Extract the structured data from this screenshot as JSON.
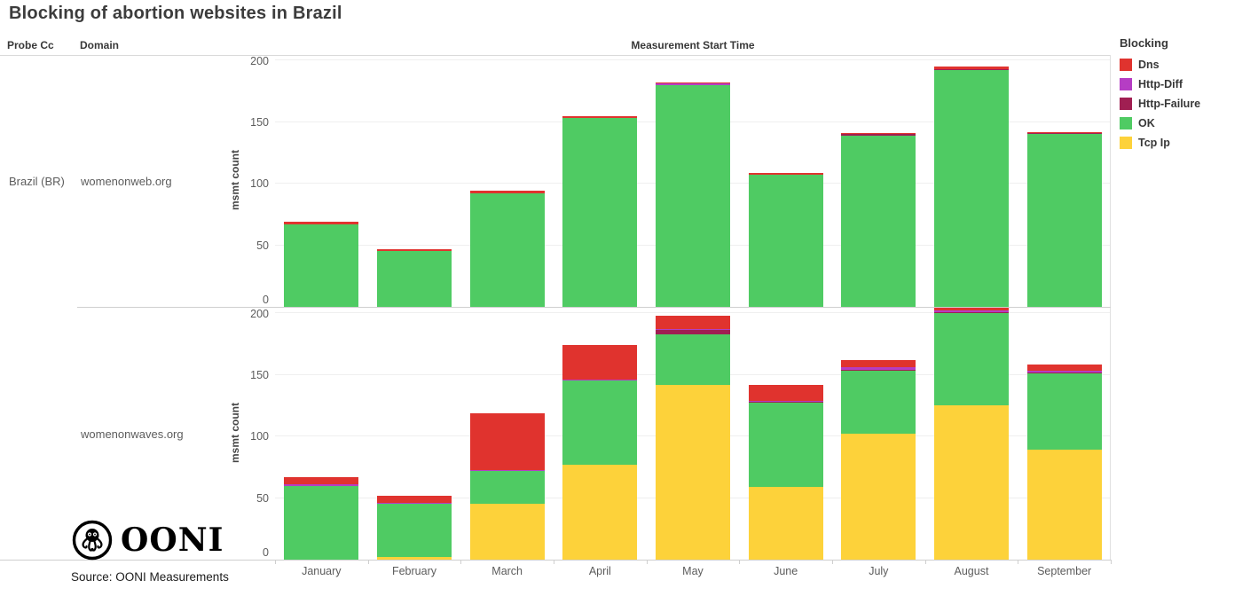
{
  "title": "Blocking of abortion websites in Brazil",
  "headers": {
    "probe_cc": "Probe Cc",
    "domain": "Domain",
    "x_axis_title": "Measurement Start Time"
  },
  "probe_label": "Brazil (BR)",
  "y_axis_title": "msmt count",
  "y_ticks": [
    0,
    50,
    100,
    150,
    200
  ],
  "legend": {
    "title": "Blocking",
    "items": [
      {
        "label": "Dns",
        "color": "#e0332e"
      },
      {
        "label": "Http-Diff",
        "color": "#b53dc4"
      },
      {
        "label": "Http-Failure",
        "color": "#a01f52"
      },
      {
        "label": "OK",
        "color": "#4fcb63"
      },
      {
        "label": "Tcp Ip",
        "color": "#fdd23a"
      }
    ]
  },
  "months": [
    "January",
    "February",
    "March",
    "April",
    "May",
    "June",
    "July",
    "August",
    "September"
  ],
  "logo_text": "OONI",
  "source": "Source: OONI Measurements",
  "chart_data": [
    {
      "type": "bar",
      "stacked": true,
      "facet_label": "womenonweb.org",
      "title": "womenonweb.org",
      "xlabel": "Measurement Start Time",
      "ylabel": "msmt count",
      "ylim": [
        0,
        200
      ],
      "grid": true,
      "legend_position": "right",
      "categories": [
        "January",
        "February",
        "March",
        "April",
        "May",
        "June",
        "July",
        "August",
        "September"
      ],
      "series_bottom_to_top": [
        {
          "name": "Tcp Ip",
          "color": "#fdd23a",
          "values": [
            0,
            0,
            0,
            0,
            0,
            0,
            0,
            0,
            0
          ]
        },
        {
          "name": "OK",
          "color": "#4fcb63",
          "values": [
            67,
            45,
            92,
            153,
            180,
            107,
            139,
            192,
            140
          ]
        },
        {
          "name": "Http-Failure",
          "color": "#a01f52",
          "values": [
            0,
            0,
            0,
            0,
            0,
            0,
            1,
            1,
            1
          ]
        },
        {
          "name": "Http-Diff",
          "color": "#b53dc4",
          "values": [
            0,
            0,
            0,
            0,
            1,
            0,
            0,
            0,
            0
          ]
        },
        {
          "name": "Dns",
          "color": "#e0332e",
          "values": [
            2,
            2,
            2,
            2,
            1,
            2,
            1,
            2,
            1
          ]
        }
      ],
      "totals": [
        69,
        47,
        94,
        155,
        182,
        109,
        141,
        195,
        142
      ]
    },
    {
      "type": "bar",
      "stacked": true,
      "facet_label": "womenonwaves.org",
      "title": "womenonwaves.org",
      "xlabel": "Measurement Start Time",
      "ylabel": "msmt count",
      "ylim": [
        0,
        200
      ],
      "grid": true,
      "legend_position": "right",
      "categories": [
        "January",
        "February",
        "March",
        "April",
        "May",
        "June",
        "July",
        "August",
        "September"
      ],
      "series_bottom_to_top": [
        {
          "name": "Tcp Ip",
          "color": "#fdd23a",
          "values": [
            0,
            2,
            45,
            77,
            142,
            59,
            102,
            125,
            89
          ]
        },
        {
          "name": "OK",
          "color": "#4fcb63",
          "values": [
            60,
            43,
            27,
            68,
            41,
            68,
            51,
            75,
            62
          ]
        },
        {
          "name": "Http-Failure",
          "color": "#a01f52",
          "values": [
            0,
            0,
            0,
            0,
            3,
            1,
            1,
            1,
            1
          ]
        },
        {
          "name": "Http-Diff",
          "color": "#b53dc4",
          "values": [
            1,
            1,
            1,
            1,
            1,
            1,
            2,
            1,
            1
          ]
        },
        {
          "name": "Dns",
          "color": "#e0332e",
          "values": [
            6,
            6,
            46,
            28,
            11,
            13,
            6,
            2,
            5
          ]
        }
      ],
      "totals": [
        67,
        52,
        119,
        174,
        198,
        142,
        162,
        204,
        158
      ]
    }
  ]
}
